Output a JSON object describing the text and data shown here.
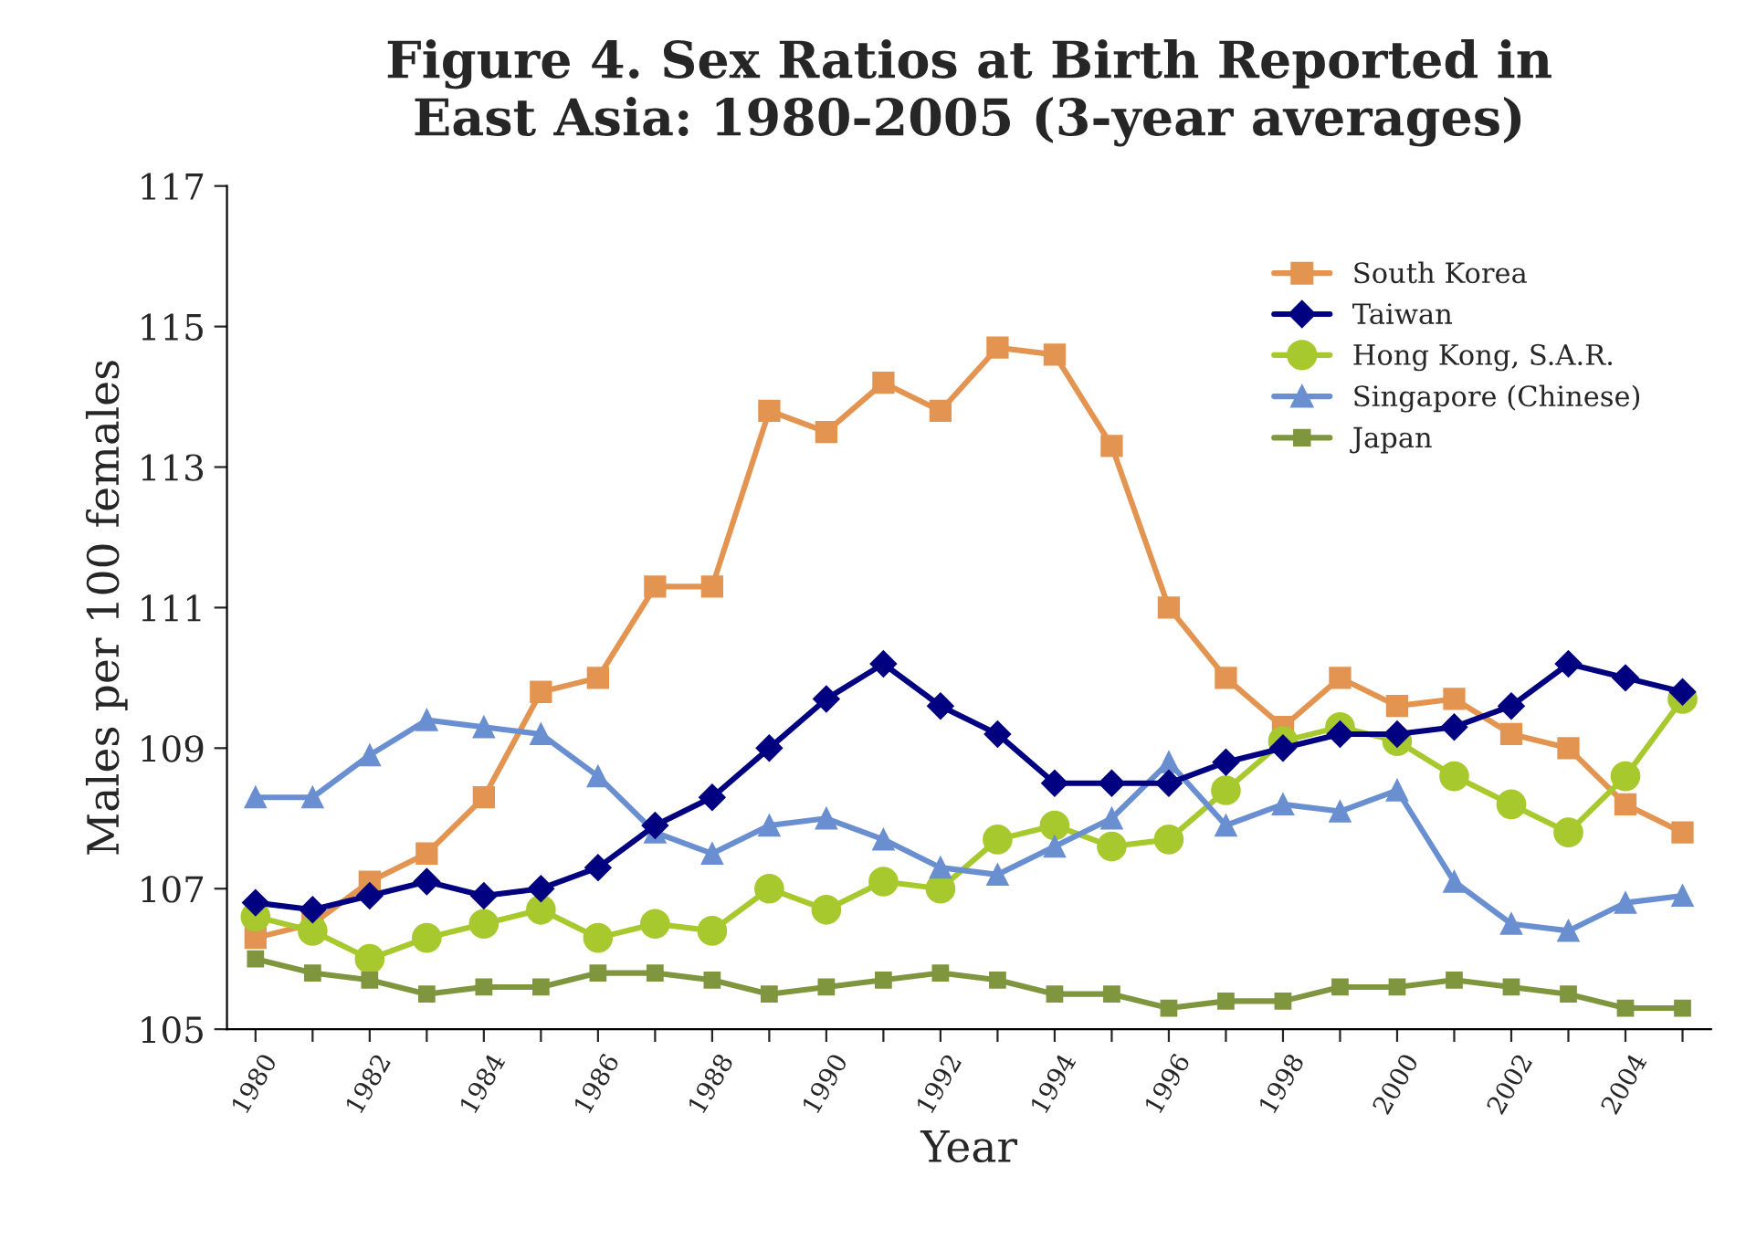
{
  "chart_data": {
    "type": "line",
    "title": "Figure 4. Sex Ratios at Birth Reported in\nEast Asia: 1980-2005 (3-year averages)",
    "xlabel": "Year",
    "ylabel": "Males per 100 females",
    "categories": [
      "1980",
      null,
      "1982",
      null,
      "1984",
      null,
      "1986",
      null,
      "1988",
      null,
      "1990",
      null,
      "1992",
      null,
      "1994",
      null,
      "1996",
      null,
      "1998",
      null,
      "2000",
      null,
      "2002",
      null,
      "2004",
      null
    ],
    "ylim": [
      105,
      117
    ],
    "yticks": [
      105,
      107,
      109,
      111,
      113,
      115,
      117
    ],
    "grid": false,
    "legend": "top right",
    "line_style": "solid",
    "series": [
      {
        "name": "South Korea",
        "color": "#e39450",
        "marker": "square",
        "values": [
          106.3,
          106.5,
          107.1,
          107.5,
          108.3,
          109.8,
          110.0,
          111.3,
          111.3,
          113.8,
          113.5,
          114.2,
          113.8,
          114.7,
          114.6,
          113.3,
          111.0,
          110.0,
          109.3,
          110.0,
          109.6,
          109.7,
          109.2,
          109.0,
          108.2,
          107.8
        ]
      },
      {
        "name": "Taiwan",
        "color": "#000080",
        "marker": "diamond",
        "values": [
          106.8,
          106.7,
          106.9,
          107.1,
          106.9,
          107.0,
          107.3,
          107.9,
          108.3,
          109.0,
          109.7,
          110.2,
          109.6,
          109.2,
          108.5,
          108.5,
          108.5,
          108.8,
          109.0,
          109.2,
          109.2,
          109.3,
          109.6,
          110.2,
          110.0,
          109.8
        ]
      },
      {
        "name": "Hong Kong, S.A.R.",
        "color": "#a8c92d",
        "marker": "circle",
        "values": [
          106.6,
          106.4,
          106.0,
          106.3,
          106.5,
          106.7,
          106.3,
          106.5,
          106.4,
          107.0,
          106.7,
          107.1,
          107.0,
          107.7,
          107.9,
          107.6,
          107.7,
          108.4,
          109.1,
          109.3,
          109.1,
          108.6,
          108.2,
          107.8,
          108.6,
          109.7
        ]
      },
      {
        "name": "Singapore (Chinese)",
        "color": "#6a8fd1",
        "marker": "triangle",
        "values": [
          108.3,
          108.3,
          108.9,
          109.4,
          109.3,
          109.2,
          108.6,
          107.8,
          107.5,
          107.9,
          108.0,
          107.7,
          107.3,
          107.2,
          107.6,
          108.0,
          108.8,
          107.9,
          108.2,
          108.1,
          108.4,
          107.1,
          106.5,
          106.4,
          106.8,
          106.9
        ]
      },
      {
        "name": "Japan",
        "color": "#7f963f",
        "marker": "square",
        "values": [
          106.0,
          105.8,
          105.7,
          105.5,
          105.6,
          105.6,
          105.8,
          105.8,
          105.7,
          105.5,
          105.6,
          105.7,
          105.8,
          105.7,
          105.5,
          105.5,
          105.3,
          105.4,
          105.4,
          105.6,
          105.6,
          105.7,
          105.6,
          105.5,
          105.3,
          105.3
        ]
      }
    ]
  }
}
